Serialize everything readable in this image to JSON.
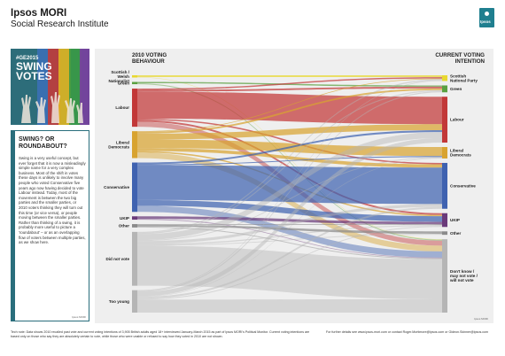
{
  "header": {
    "brand": "Ipsos MORI",
    "subtitle": "Social Research Institute",
    "logo_text": "Ipsos"
  },
  "poster": {
    "tag": "#GE2015",
    "title_line1": "SWING",
    "title_line2": "VOTES",
    "stripe_colors": [
      "#3b6fb6",
      "#c23b3b",
      "#e0b520",
      "#3a9a45",
      "#7a3fa0"
    ]
  },
  "sidebar": {
    "heading": "SWING? OR ROUNDABOUT?",
    "body": "Swing is a very useful concept, but ever forget that it is now a misleadingly simple name for a very complex business. Most of the shift in votes these days is unlikely to involve many people who voted Conservative five years ago now having decided to vote Labour instead. Today, most of the movement is between the two big parties and the smaller parties, or 2010 voters thinking they will turn out this time (or vice versa), or people moving between the smaller parties. Rather than thinking of a swing, it is probably more useful to picture a 'roundabout' – or as an overlapping flow of voters between multiple parties, as we show here.",
    "credit": "Ipsos MORI"
  },
  "chart_data": {
    "type": "sankey",
    "left_title": "2010 VOTING BEHAVIOUR",
    "right_title": "CURRENT VOTING INTENTION",
    "left_nodes": [
      {
        "label": "Scottish / Welsh Nationalist",
        "color": "#e8d830",
        "value": 1.0
      },
      {
        "label": "Green",
        "color": "#5aa040",
        "value": 1.0
      },
      {
        "label": "Labour",
        "color": "#c23838",
        "value": 17.0
      },
      {
        "label": "Liberal Democrats",
        "color": "#d8a330",
        "value": 12.0
      },
      {
        "label": "Conservative",
        "color": "#3f62b0",
        "value": 22.0
      },
      {
        "label": "UKIP",
        "color": "#6a3a7a",
        "value": 1.5
      },
      {
        "label": "Other",
        "color": "#8a8a8a",
        "value": 1.5
      },
      {
        "label": "Did not vote",
        "color": "#b5b5b5",
        "value": 24.0
      },
      {
        "label": "Too young",
        "color": "#b5b5b5",
        "value": 10.0
      }
    ],
    "right_nodes": [
      {
        "label": "Scottish National Party",
        "color": "#e8d830",
        "value": 2.5
      },
      {
        "label": "Green",
        "color": "#5aa040",
        "value": 3.0
      },
      {
        "label": "Labour",
        "color": "#c23838",
        "value": 20.0
      },
      {
        "label": "Liberal Democrats",
        "color": "#d8a330",
        "value": 5.0
      },
      {
        "label": "Conservative",
        "color": "#3f62b0",
        "value": 20.0
      },
      {
        "label": "UKIP",
        "color": "#6a3a7a",
        "value": 6.0
      },
      {
        "label": "Other",
        "color": "#8a8a8a",
        "value": 1.5
      },
      {
        "label": "Don't know / may not vote / will not vote",
        "color": "#b5b5b5",
        "value": 32.0
      }
    ],
    "flows": [
      {
        "from": 0,
        "to": 0,
        "value": 0.8
      },
      {
        "from": 0,
        "to": 7,
        "value": 0.2
      },
      {
        "from": 1,
        "to": 1,
        "value": 0.6
      },
      {
        "from": 1,
        "to": 7,
        "value": 0.4
      },
      {
        "from": 2,
        "to": 2,
        "value": 12.0
      },
      {
        "from": 2,
        "to": 0,
        "value": 0.6
      },
      {
        "from": 2,
        "to": 1,
        "value": 0.8
      },
      {
        "from": 2,
        "to": 5,
        "value": 0.8
      },
      {
        "from": 2,
        "to": 4,
        "value": 0.6
      },
      {
        "from": 2,
        "to": 7,
        "value": 2.2
      },
      {
        "from": 3,
        "to": 3,
        "value": 3.8
      },
      {
        "from": 3,
        "to": 2,
        "value": 2.6
      },
      {
        "from": 3,
        "to": 4,
        "value": 1.4
      },
      {
        "from": 3,
        "to": 1,
        "value": 0.8
      },
      {
        "from": 3,
        "to": 0,
        "value": 0.3
      },
      {
        "from": 3,
        "to": 5,
        "value": 0.6
      },
      {
        "from": 3,
        "to": 7,
        "value": 2.5
      },
      {
        "from": 4,
        "to": 4,
        "value": 15.5
      },
      {
        "from": 4,
        "to": 5,
        "value": 2.6
      },
      {
        "from": 4,
        "to": 2,
        "value": 0.8
      },
      {
        "from": 4,
        "to": 3,
        "value": 0.4
      },
      {
        "from": 4,
        "to": 7,
        "value": 2.7
      },
      {
        "from": 5,
        "to": 5,
        "value": 1.2
      },
      {
        "from": 5,
        "to": 7,
        "value": 0.3
      },
      {
        "from": 6,
        "to": 6,
        "value": 0.8
      },
      {
        "from": 6,
        "to": 5,
        "value": 0.3
      },
      {
        "from": 6,
        "to": 7,
        "value": 0.4
      },
      {
        "from": 7,
        "to": 7,
        "value": 17.5
      },
      {
        "from": 7,
        "to": 2,
        "value": 2.6
      },
      {
        "from": 7,
        "to": 4,
        "value": 1.2
      },
      {
        "from": 7,
        "to": 0,
        "value": 0.5
      },
      {
        "from": 7,
        "to": 1,
        "value": 0.5
      },
      {
        "from": 7,
        "to": 3,
        "value": 0.4
      },
      {
        "from": 7,
        "to": 5,
        "value": 0.5
      },
      {
        "from": 7,
        "to": 6,
        "value": 0.3
      },
      {
        "from": 8,
        "to": 7,
        "value": 5.8
      },
      {
        "from": 8,
        "to": 2,
        "value": 2.0
      },
      {
        "from": 8,
        "to": 4,
        "value": 0.8
      },
      {
        "from": 8,
        "to": 1,
        "value": 0.5
      },
      {
        "from": 8,
        "to": 0,
        "value": 0.3
      },
      {
        "from": 8,
        "to": 5,
        "value": 0.4
      },
      {
        "from": 8,
        "to": 3,
        "value": 0.2
      }
    ],
    "credit": "Ipsos MORI"
  },
  "footer": {
    "tech_note": "Tech note: Data shows 2010 recalled past vote and current voting intentions of 3,905 British adults aged 18+ interviewed January-March 2015 as part of Ipsos MORI's Political Monitor. Current voting intentions are based only on those who say they are absolutely certain to vote, while those who were unable or refused to say how they voted in 2010 are not shown.",
    "contact": "For further details see www.ipsos-mori.com or contact Roger.Mortimore@ipsos.com or Gideon.Skinner@ipsos.com"
  }
}
